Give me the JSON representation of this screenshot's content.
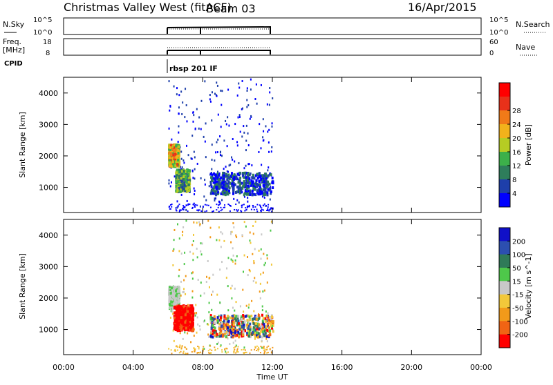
{
  "header": {
    "title": "Christmas Valley West (fitACF)",
    "beam": "Beam 03",
    "date": "16/Apr/2015"
  },
  "top_panels": {
    "nsky": {
      "label": "N.Sky",
      "left_ticks": [
        "10^5",
        "10^0"
      ],
      "right_ticks": [
        "10^5",
        "10^0"
      ],
      "right_label": "N.Search"
    },
    "freq": {
      "label": "Freq.",
      "unit": "[MHz]",
      "left_ticks": [
        "18",
        "8"
      ],
      "right_ticks": [
        "60",
        "0"
      ],
      "right_label": "Nave"
    },
    "cpid": {
      "label": "CPID",
      "program": "rbsp 201 IF"
    }
  },
  "chart_data": [
    {
      "type": "heatmap",
      "name": "power",
      "ylabel": "Slant Range [km]",
      "yticks": [
        "1000",
        "2000",
        "3000",
        "4000"
      ],
      "ylim": [
        200,
        4500
      ],
      "colorbar": {
        "label": "Power [dB]",
        "ticks": [
          "4",
          "8",
          "12",
          "16",
          "20",
          "24",
          "28"
        ],
        "colors": [
          "#0000ff",
          "#1e3faa",
          "#2e7d5b",
          "#3cb04a",
          "#b6cc23",
          "#f2b21b",
          "#f07a18",
          "#e8311a",
          "#ff0000"
        ]
      },
      "regions": [
        {
          "t": [
            6.0,
            6.6
          ],
          "r": [
            1700,
            2400
          ],
          "v": "high"
        },
        {
          "t": [
            6.4,
            7.2
          ],
          "r": [
            900,
            1600
          ],
          "v": "mid"
        },
        {
          "t": [
            8.4,
            12.0
          ],
          "r": [
            800,
            1500
          ],
          "v": "low"
        }
      ]
    },
    {
      "type": "heatmap",
      "name": "velocity",
      "ylabel": "Slant Range [km]",
      "yticks": [
        "1000",
        "2000",
        "3000",
        "4000"
      ],
      "ylim": [
        200,
        4500
      ],
      "colorbar": {
        "label": "Velocity [m s^-1]",
        "ticks": [
          "200",
          "100",
          "50",
          "15",
          "-15",
          "-50",
          "-100",
          "-200"
        ],
        "colors": [
          "#1010c8",
          "#2c4fb0",
          "#2f7a58",
          "#4ec84a",
          "#c8c8c8",
          "#f2c83a",
          "#f29a1a",
          "#f06414",
          "#ff0000"
        ]
      },
      "regions": [
        {
          "t": [
            6.0,
            6.6
          ],
          "r": [
            1700,
            2400
          ],
          "v": "gray"
        },
        {
          "t": [
            6.3,
            7.4
          ],
          "r": [
            1000,
            1800
          ],
          "v": "red"
        },
        {
          "t": [
            8.4,
            12.0
          ],
          "r": [
            800,
            1500
          ],
          "v": "mixed"
        }
      ]
    }
  ],
  "xaxis": {
    "label": "Time UT",
    "ticks": [
      "00:00",
      "04:00",
      "08:00",
      "12:00",
      "16:00",
      "20:00",
      "00:00"
    ],
    "range": [
      0,
      24
    ]
  }
}
